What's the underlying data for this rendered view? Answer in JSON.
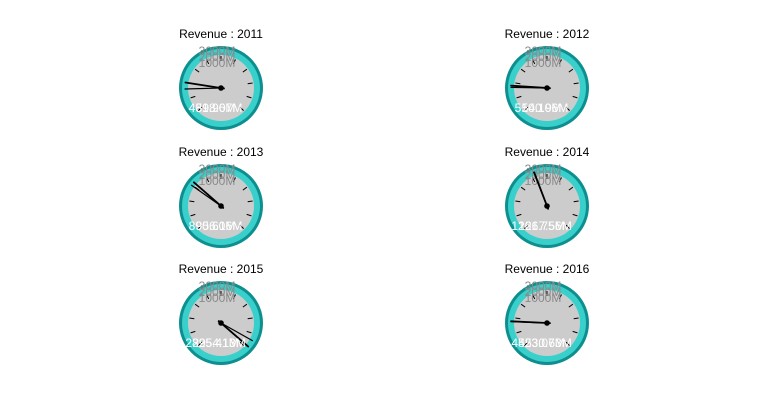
{
  "colors": {
    "bezel_outer": "#0e8f8f",
    "bezel_inner": "#39d0cc",
    "face": "#cccccc",
    "tick": "#000000",
    "needle": "#000000",
    "needle_hub": "#000000",
    "scale_label": "#8a8a8a",
    "value_label": "#ffffff"
  },
  "chart_data": [
    {
      "type": "gauge",
      "title": "Revenue : 2011",
      "scale_labels": [
        "3000M",
        "2000M",
        "1000M"
      ],
      "value_labels": [
        "481.96M",
        "598.07M"
      ],
      "needle_values": [
        481.96,
        598.07
      ],
      "range": [
        0,
        3000
      ]
    },
    {
      "type": "gauge",
      "title": "Revenue : 2012",
      "scale_labels": [
        "3000M",
        "2000M",
        "1000M"
      ],
      "value_labels": [
        "510.10M",
        "540.96M"
      ],
      "needle_values": [
        510.1,
        540.96
      ],
      "range": [
        0,
        3000
      ]
    },
    {
      "type": "gauge",
      "title": "Revenue : 2013",
      "scale_labels": [
        "3000M",
        "2000M",
        "1000M"
      ],
      "value_labels": [
        "890.60M",
        "956.16M"
      ],
      "needle_values": [
        890.6,
        956.16
      ],
      "range": [
        0,
        3000
      ]
    },
    {
      "type": "gauge",
      "title": "Revenue : 2014",
      "scale_labels": [
        "3000M",
        "2000M",
        "1000M"
      ],
      "value_labels": [
        "1261.75M",
        "1267.56M"
      ],
      "needle_values": [
        1261.75,
        1267.56
      ],
      "range": [
        0,
        3000
      ]
    },
    {
      "type": "gauge",
      "title": "Revenue : 2015",
      "scale_labels": [
        "3000M",
        "2000M",
        "1000M"
      ],
      "value_labels": [
        "2825.41M",
        "2954.13M"
      ],
      "needle_values": [
        2825.41,
        2954.13
      ],
      "range": [
        0,
        3000
      ]
    },
    {
      "type": "gauge",
      "title": "Revenue : 2016",
      "scale_labels": [
        "3000M",
        "2000M",
        "1000M"
      ],
      "value_labels": [
        "4523.07M",
        "4530.63M"
      ],
      "needle_values": [
        4523.07,
        4530.63
      ],
      "range": [
        0,
        3000
      ]
    }
  ]
}
